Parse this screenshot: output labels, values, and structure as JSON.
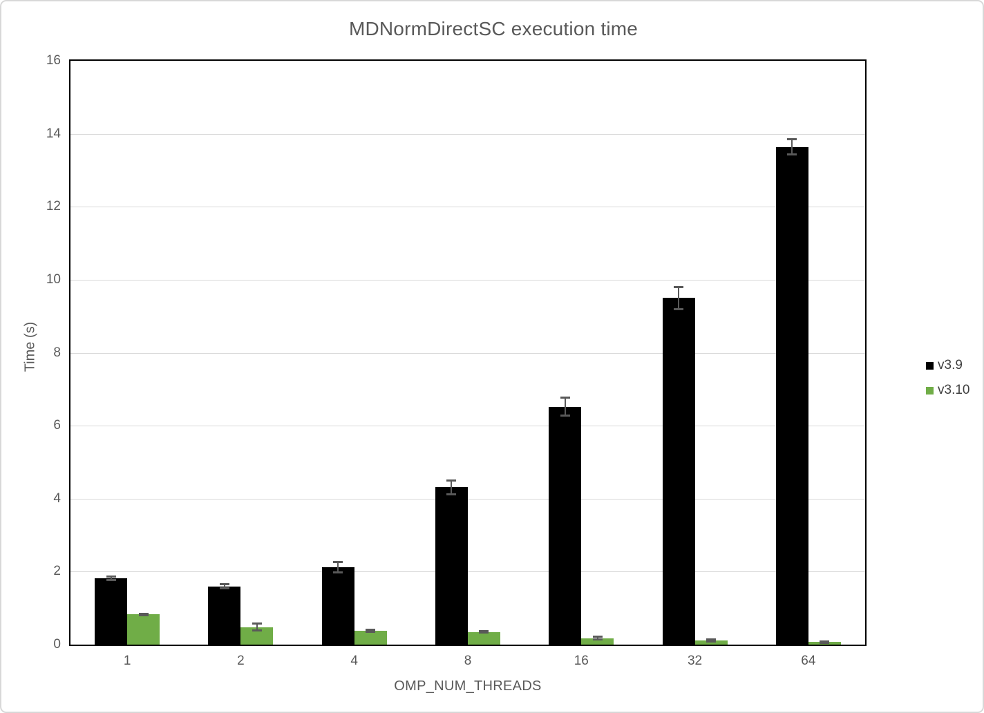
{
  "chart_data": {
    "type": "bar",
    "title": "MDNormDirectSC execution time",
    "xlabel": "OMP_NUM_THREADS",
    "ylabel": "Time (s)",
    "ylim": [
      0,
      16
    ],
    "y_ticks": [
      0,
      2,
      4,
      6,
      8,
      10,
      12,
      14,
      16
    ],
    "grid": true,
    "legend_position": "right",
    "error_bar_color": "#595959",
    "gridline_color": "#d9d9d9",
    "categories": [
      "1",
      "2",
      "4",
      "8",
      "16",
      "32",
      "64"
    ],
    "series": [
      {
        "name": "v3.9",
        "color": "#000000",
        "values": [
          1.82,
          1.6,
          2.12,
          4.31,
          6.52,
          9.5,
          13.64
        ],
        "errors": [
          0.05,
          0.06,
          0.16,
          0.2,
          0.26,
          0.31,
          0.22
        ]
      },
      {
        "name": "v3.10",
        "color": "#70AD47",
        "values": [
          0.83,
          0.48,
          0.38,
          0.35,
          0.18,
          0.12,
          0.07
        ],
        "errors": [
          0.03,
          0.1,
          0.04,
          0.02,
          0.04,
          0.04,
          0.03
        ]
      }
    ]
  }
}
